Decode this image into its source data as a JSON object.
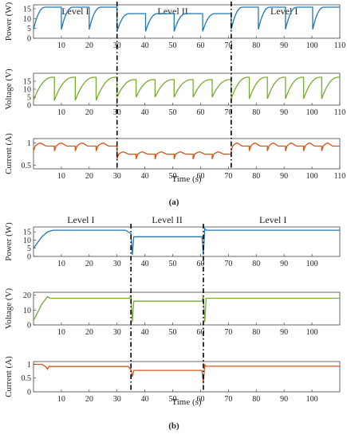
{
  "panels": [
    {
      "caption": "(a)",
      "xlabel": "Time (s)",
      "xlim": [
        0,
        110
      ],
      "xticks": [
        10,
        20,
        30,
        40,
        50,
        60,
        70,
        80,
        90,
        100,
        110
      ],
      "level_boundaries": [
        30,
        71
      ],
      "level_labels": [
        {
          "text": "Level I",
          "x": 15
        },
        {
          "text": "Level II",
          "x": 50
        },
        {
          "text": "Level I",
          "x": 90
        }
      ],
      "subplots": [
        {
          "ylabel": "Power (W)",
          "ylim": [
            0,
            17
          ],
          "yticks": [
            0,
            5,
            10,
            15
          ],
          "color": "#1f77b4",
          "segments": [
            {
              "t0": 0,
              "t1": 30,
              "period": 10,
              "low": 4.5,
              "high": 15.8,
              "rise": 0.42
            },
            {
              "t0": 30,
              "t1": 71,
              "period": 10.25,
              "low": 3.5,
              "high": 12.5,
              "rise": 0.42
            },
            {
              "t0": 71,
              "t1": 110,
              "period": 9.75,
              "low": 4.5,
              "high": 15.8,
              "rise": 0.42
            }
          ]
        },
        {
          "ylabel": "Voltage (V)",
          "ylim": [
            0,
            20
          ],
          "yticks": [
            0,
            5,
            10,
            15
          ],
          "color": "#77ac30",
          "segments": [
            {
              "t0": 0,
              "t1": 30,
              "period": 7.5,
              "low": 3,
              "high": 17.5,
              "rise": 0.92
            },
            {
              "t0": 30,
              "t1": 71,
              "period": 6.83,
              "low": 5,
              "high": 16,
              "rise": 0.92
            },
            {
              "t0": 71,
              "t1": 110,
              "period": 6.5,
              "low": 4,
              "high": 17.5,
              "rise": 0.92
            }
          ]
        },
        {
          "ylabel": "Current (A)",
          "ylim": [
            0.42,
            1.1
          ],
          "yticks": [
            0.5,
            1
          ],
          "color": "#d95319",
          "segments": [
            {
              "t0": 0,
              "t1": 30,
              "period": 7.5,
              "low": 0.82,
              "high": 1.0,
              "base": 0.93,
              "shape": "bump"
            },
            {
              "t0": 30,
              "t1": 71,
              "period": 6.83,
              "low": 0.64,
              "high": 0.8,
              "base": 0.75,
              "shape": "bump"
            },
            {
              "t0": 71,
              "t1": 110,
              "period": 6.5,
              "low": 0.82,
              "high": 1.0,
              "base": 0.93,
              "shape": "bump"
            }
          ]
        }
      ]
    },
    {
      "caption": "(b)",
      "xlabel": "Time (s)",
      "xlim": [
        0,
        110
      ],
      "xticks": [
        10,
        20,
        30,
        40,
        50,
        60,
        70,
        80,
        90,
        100
      ],
      "level_boundaries": [
        35,
        61
      ],
      "level_labels": [
        {
          "text": "Level I",
          "x": 17
        },
        {
          "text": "Level II",
          "x": 48
        },
        {
          "text": "Level I",
          "x": 86
        }
      ],
      "subplots": [
        {
          "ylabel": "Power (W)",
          "ylim": [
            0,
            18
          ],
          "yticks": [
            0,
            5,
            10,
            15
          ],
          "color": "#1f77b4",
          "steady": [
            {
              "t": 0,
              "v": 5
            },
            {
              "t": 3,
              "v": 12
            },
            {
              "t": 5,
              "v": 15
            },
            {
              "t": 7,
              "v": 16
            },
            {
              "t": 33,
              "v": 16
            },
            {
              "t": 35,
              "v": 14
            },
            {
              "t": 35.5,
              "v": 1
            },
            {
              "t": 36,
              "v": 12
            },
            {
              "t": 60.5,
              "v": 12
            },
            {
              "t": 61,
              "v": 1
            },
            {
              "t": 61.5,
              "v": 17
            },
            {
              "t": 62,
              "v": 16
            },
            {
              "t": 110,
              "v": 16
            }
          ]
        },
        {
          "ylabel": "Voltage (V)",
          "ylim": [
            0,
            22
          ],
          "yticks": [
            0,
            10,
            20
          ],
          "color": "#77ac30",
          "steady": [
            {
              "t": 0,
              "v": 3
            },
            {
              "t": 3,
              "v": 14
            },
            {
              "t": 5,
              "v": 19
            },
            {
              "t": 6,
              "v": 18
            },
            {
              "t": 34.5,
              "v": 18
            },
            {
              "t": 35,
              "v": 20
            },
            {
              "t": 35.5,
              "v": 2
            },
            {
              "t": 36,
              "v": 16
            },
            {
              "t": 60.5,
              "v": 16
            },
            {
              "t": 61,
              "v": 19
            },
            {
              "t": 61.5,
              "v": 2
            },
            {
              "t": 62,
              "v": 18
            },
            {
              "t": 110,
              "v": 18
            }
          ]
        },
        {
          "ylabel": "Current (A)",
          "ylim": [
            0,
            1.1
          ],
          "yticks": [
            0,
            0.5,
            1
          ],
          "color": "#d95319",
          "steady": [
            {
              "t": 0,
              "v": 1.0
            },
            {
              "t": 3,
              "v": 1.0
            },
            {
              "t": 4.5,
              "v": 0.9
            },
            {
              "t": 5,
              "v": 0.82
            },
            {
              "t": 5.5,
              "v": 0.92
            },
            {
              "t": 34,
              "v": 0.92
            },
            {
              "t": 35,
              "v": 0.8
            },
            {
              "t": 35.5,
              "v": 0.55
            },
            {
              "t": 36,
              "v": 0.78
            },
            {
              "t": 60.5,
              "v": 0.78
            },
            {
              "t": 61,
              "v": 0.3
            },
            {
              "t": 61.5,
              "v": 0.98
            },
            {
              "t": 62,
              "v": 0.93
            },
            {
              "t": 110,
              "v": 0.93
            }
          ]
        }
      ]
    }
  ],
  "chart_data": [
    {
      "type": "line",
      "panel": "(a)",
      "xlabel": "Time (s)",
      "xlim": [
        0,
        110
      ],
      "annotations": [
        "Level I",
        "Level II",
        "Level I"
      ],
      "series": [
        {
          "name": "Power (W)",
          "x": [
            0,
            4,
            9.9,
            10,
            14,
            19.9,
            20,
            24,
            29.9,
            30,
            34,
            40,
            44,
            50,
            54,
            60,
            64,
            70.9,
            71,
            75,
            80,
            84,
            90,
            94,
            100,
            104,
            110
          ],
          "y": [
            4.5,
            15.8,
            15.8,
            4.5,
            15.8,
            15.8,
            4.5,
            15.8,
            15.8,
            3.5,
            12.5,
            3.5,
            12.5,
            3.5,
            12.5,
            3.5,
            12.5,
            12.5,
            4.5,
            15.8,
            4.5,
            15.8,
            4.5,
            15.8,
            4.5,
            15.8,
            15.8
          ]
        },
        {
          "name": "Voltage (V)",
          "x": [
            0,
            7,
            7.5,
            14.5,
            15,
            22,
            22.5,
            29.5,
            30,
            36.5,
            37,
            43.5,
            44,
            50.5,
            51,
            57.5,
            58,
            64.5,
            65,
            70.9,
            71,
            77,
            77.5,
            83.5,
            84,
            90,
            90.5,
            96.5,
            97,
            103,
            103.5,
            110
          ],
          "y": [
            3,
            17.5,
            3,
            17.5,
            3,
            17.5,
            3,
            17.5,
            5,
            16,
            5,
            16,
            5,
            16,
            5,
            16,
            5,
            16,
            5,
            16,
            4,
            17.5,
            4,
            17.5,
            4,
            17.5,
            4,
            17.5,
            4,
            17.5,
            4,
            17.5
          ]
        },
        {
          "name": "Current (A)",
          "x": [
            0,
            3,
            7.5,
            15,
            22.5,
            30,
            37,
            44,
            51,
            58,
            65,
            71,
            77.5,
            84,
            90.5,
            97,
            103.5,
            110
          ],
          "y": [
            0.93,
            1.0,
            0.82,
            0.82,
            0.82,
            0.75,
            0.64,
            0.64,
            0.64,
            0.64,
            0.64,
            0.93,
            0.82,
            0.82,
            0.82,
            0.82,
            0.82,
            0.93
          ]
        }
      ]
    },
    {
      "type": "line",
      "panel": "(b)",
      "xlabel": "Time (s)",
      "xlim": [
        0,
        110
      ],
      "annotations": [
        "Level I",
        "Level II",
        "Level I"
      ],
      "series": [
        {
          "name": "Power (W)",
          "x": [
            0,
            5,
            7,
            35,
            36,
            61,
            62,
            110
          ],
          "y": [
            5,
            15,
            16,
            14,
            12,
            12,
            16,
            16
          ]
        },
        {
          "name": "Voltage (V)",
          "x": [
            0,
            5,
            6,
            35,
            36,
            61,
            62,
            110
          ],
          "y": [
            3,
            19,
            18,
            20,
            16,
            16,
            18,
            18
          ]
        },
        {
          "name": "Current (A)",
          "x": [
            0,
            3,
            5,
            5.5,
            35.5,
            36,
            61,
            62,
            110
          ],
          "y": [
            1.0,
            1.0,
            0.82,
            0.92,
            0.55,
            0.78,
            0.3,
            0.93,
            0.93
          ]
        }
      ]
    }
  ]
}
